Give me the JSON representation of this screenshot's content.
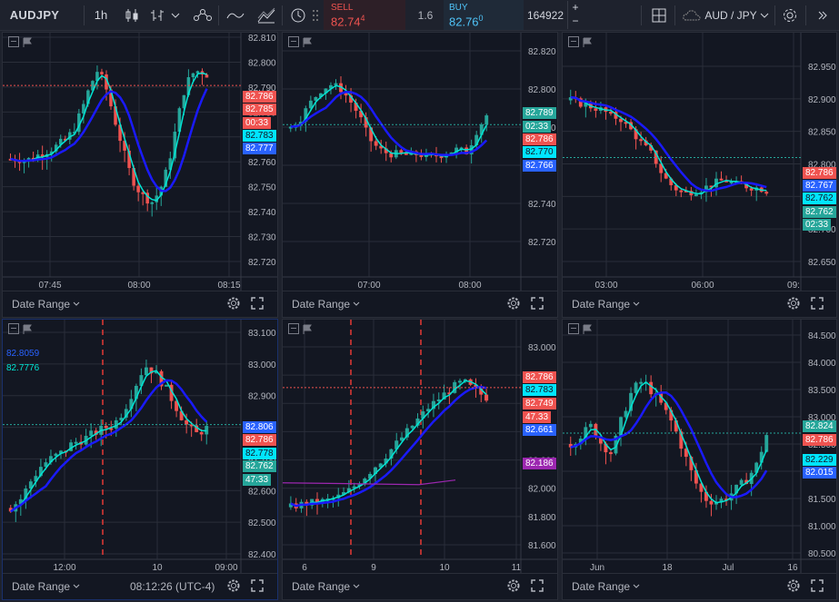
{
  "toolbar": {
    "symbol": "AUDJPY",
    "interval": "1h",
    "sell": {
      "label": "SELL",
      "price": "82.74",
      "sup": "4"
    },
    "spread": "1.6",
    "buy": {
      "label": "BUY",
      "price": "82.76",
      "sup": "0"
    },
    "quantity": "164922",
    "pair": "AUD / JPY",
    "icons": [
      "candles-icon",
      "bars-icon",
      "indicators-icon",
      "line-icon",
      "compare-icon",
      "replay-icon",
      "layout-grid-icon",
      "cloud-icon",
      "gear-icon"
    ]
  },
  "footer": {
    "date_range": "Date Range",
    "time": "08:12:26 (UTC-4)"
  },
  "colors": {
    "bg": "#131722",
    "up": "#26a69a",
    "down": "#ef5350",
    "ma_fast": "#00e5d4",
    "ma_slow": "#1a1aff",
    "purple": "#9c27b0",
    "grid": "#2a2e39"
  },
  "panels": [
    {
      "id": "p1",
      "y_ticks": [
        "82.810",
        "82.800",
        "82.790",
        "82.780",
        "82.770",
        "82.760",
        "82.750",
        "82.740",
        "82.730",
        "82.720"
      ],
      "x_ticks": [
        "07:45",
        "08:00",
        "08:15"
      ],
      "tags": [
        {
          "t": "82.786",
          "c": "red"
        },
        {
          "t": "82.785",
          "c": "red"
        },
        {
          "t": "00:33",
          "c": "red"
        },
        {
          "t": "82.783",
          "c": "cyan"
        },
        {
          "t": "82.777",
          "c": "blue"
        }
      ]
    },
    {
      "id": "p2",
      "y_ticks": [
        "82.820",
        "82.800",
        "82.780",
        "82.760",
        "82.740",
        "82.720"
      ],
      "x_ticks": [
        "07:00",
        "08:00"
      ],
      "tags": [
        {
          "t": "82.789",
          "c": "green"
        },
        {
          "t": "02:33",
          "c": "green"
        },
        {
          "t": "82.786",
          "c": "red"
        },
        {
          "t": "82.770",
          "c": "cyan"
        },
        {
          "t": "82.766",
          "c": "blue"
        }
      ]
    },
    {
      "id": "p3",
      "y_ticks": [
        "82.950",
        "82.900",
        "82.850",
        "82.800",
        "82.750",
        "82.700",
        "82.650"
      ],
      "x_ticks": [
        "03:00",
        "06:00",
        "09:"
      ],
      "tags": [
        {
          "t": "82.786",
          "c": "red"
        },
        {
          "t": "82.767",
          "c": "blue"
        },
        {
          "t": "82.762",
          "c": "cyan"
        },
        {
          "t": "82.762",
          "c": "green"
        },
        {
          "t": "02:33",
          "c": "green"
        }
      ]
    },
    {
      "id": "p4",
      "y_ticks": [
        "83.100",
        "83.000",
        "82.900",
        "82.800",
        "82.700",
        "82.600",
        "82.500",
        "82.400"
      ],
      "x_ticks": [
        "12:00",
        "10",
        "09:00"
      ],
      "legend": [
        "82.8059",
        "82.7776"
      ],
      "tags": [
        {
          "t": "82.806",
          "c": "blue"
        },
        {
          "t": "82.786",
          "c": "red"
        },
        {
          "t": "82.778",
          "c": "cyan"
        },
        {
          "t": "82.762",
          "c": "green"
        },
        {
          "t": "47:33",
          "c": "green"
        }
      ]
    },
    {
      "id": "p5",
      "y_ticks": [
        "83.000",
        "82.800",
        "82.600",
        "82.400",
        "82.200",
        "82.000",
        "81.800",
        "81.600"
      ],
      "x_ticks": [
        "6",
        "9",
        "10",
        "11"
      ],
      "tags": [
        {
          "t": "82.786",
          "c": "red"
        },
        {
          "t": "82.783",
          "c": "cyan"
        },
        {
          "t": "82.749",
          "c": "red"
        },
        {
          "t": "47.33",
          "c": "red"
        },
        {
          "t": "82.661",
          "c": "blue"
        },
        {
          "t": "82.186",
          "c": "purple"
        }
      ]
    },
    {
      "id": "p6",
      "y_ticks": [
        "84.500",
        "84.000",
        "83.500",
        "83.000",
        "82.500",
        "82.000",
        "81.500",
        "81.000",
        "80.500"
      ],
      "x_ticks": [
        "Jun",
        "18",
        "Jul",
        "16"
      ],
      "tags": [
        {
          "t": "82.824",
          "c": "green"
        },
        {
          "t": "82.786",
          "c": "red"
        },
        {
          "t": "82.229",
          "c": "cyan"
        },
        {
          "t": "82.015",
          "c": "blue"
        }
      ]
    }
  ]
}
